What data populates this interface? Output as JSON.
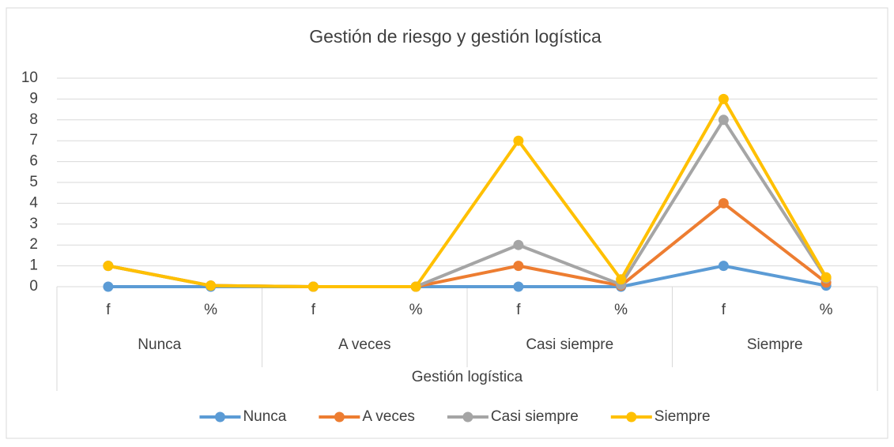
{
  "chart_data": {
    "type": "line",
    "title": "Gestión de riesgo y gestión logística",
    "categories": [
      "f",
      "%",
      "f",
      "%",
      "f",
      "%",
      "f",
      "%"
    ],
    "groups": [
      "Nunca",
      "A veces",
      "Casi siempre",
      "Siempre"
    ],
    "xlabel": "Gestión logística",
    "series": [
      {
        "name": "Nunca",
        "color": "#5b9bd5",
        "values": [
          0,
          0,
          0,
          0,
          0,
          0,
          1,
          0.05
        ]
      },
      {
        "name": "A veces",
        "color": "#ed7d31",
        "values": [
          1,
          0.05,
          0,
          0,
          1,
          0.05,
          4,
          0.2
        ]
      },
      {
        "name": "Casi siempre",
        "color": "#a5a5a5",
        "values": [
          1,
          0.05,
          0,
          0,
          2,
          0.1,
          8,
          0.4
        ]
      },
      {
        "name": "Siempre",
        "color": "#ffc000",
        "values": [
          1,
          0.05,
          0,
          0,
          7,
          0.35,
          9,
          0.45
        ]
      }
    ],
    "ylim": [
      0,
      10
    ],
    "yticks": [
      0,
      1,
      2,
      3,
      4,
      5,
      6,
      7,
      8,
      9,
      10
    ],
    "grid": true,
    "legend": "bottom"
  }
}
